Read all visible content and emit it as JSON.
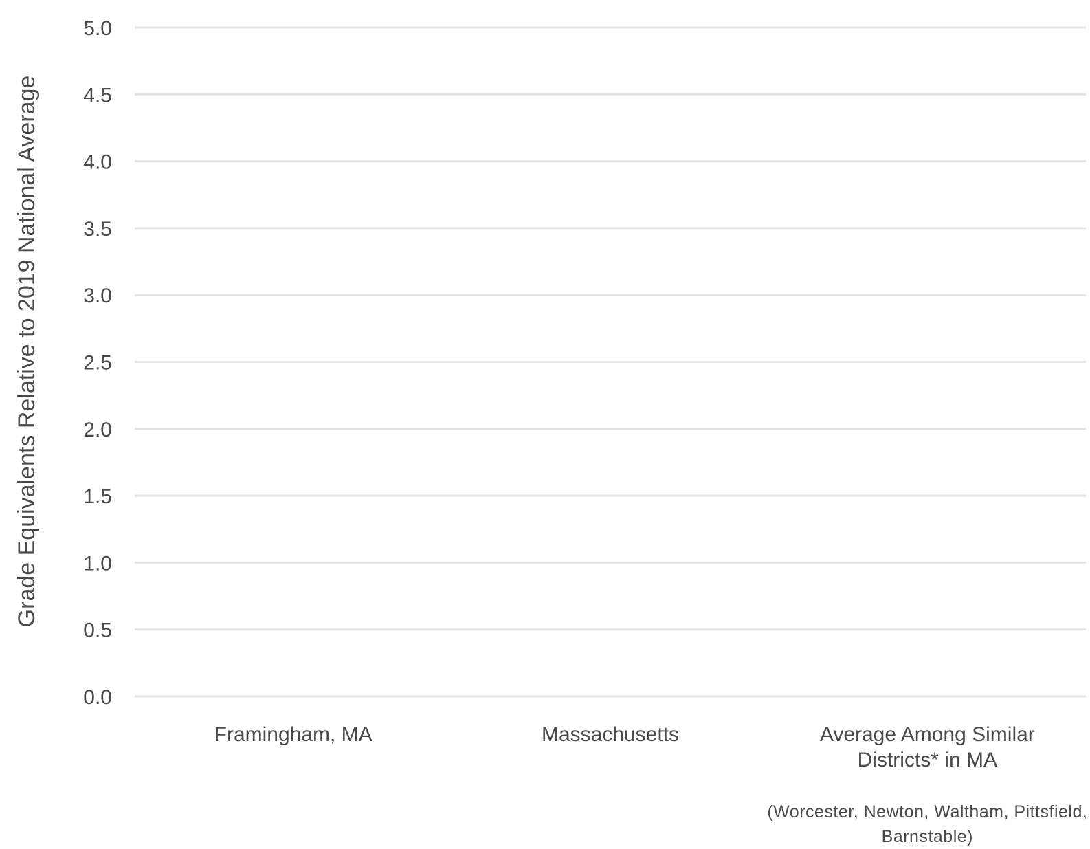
{
  "chart_data": {
    "type": "bar",
    "title": "",
    "xlabel": "",
    "ylabel": "Grade Equivalents Relative to 2019 National Average",
    "ylim": [
      0,
      5
    ],
    "yticks": [
      "0.0",
      "0.5",
      "1.0",
      "1.5",
      "2.0",
      "2.5",
      "3.0",
      "3.5",
      "4.0",
      "4.5",
      "5.0"
    ],
    "grid": true,
    "categories": [
      {
        "lines": [
          "Framingham, MA"
        ],
        "note": []
      },
      {
        "lines": [
          "Massachusetts"
        ],
        "note": []
      },
      {
        "lines": [
          "Average Among Similar",
          "Districts* in MA"
        ],
        "note": [
          "(Worcester, Newton, Waltham, Pittsfield,",
          "Barnstable)"
        ]
      }
    ],
    "series": []
  }
}
